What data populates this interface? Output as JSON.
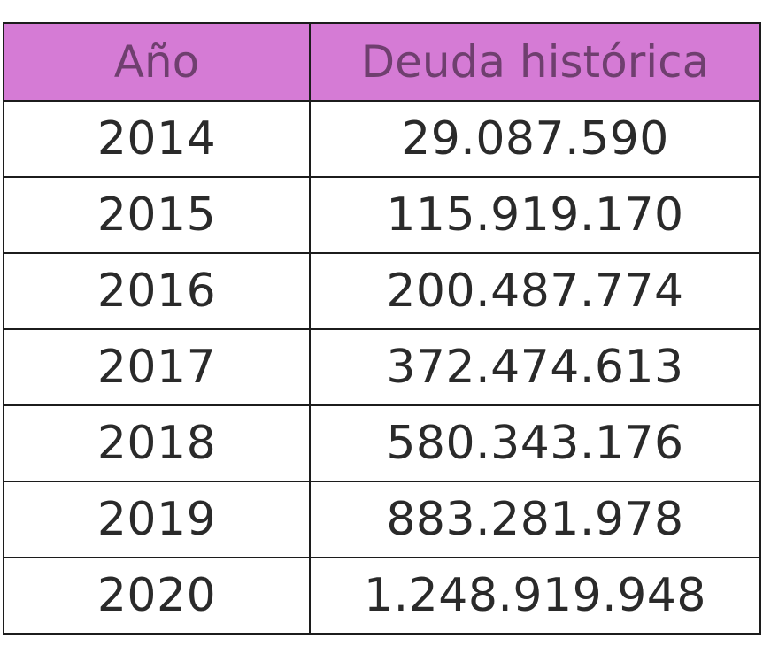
{
  "table": {
    "header_color": "#d57bd5",
    "columns": [
      "Año",
      "Deuda histórica"
    ],
    "rows": [
      [
        "2014",
        "29.087.590"
      ],
      [
        "2015",
        "115.919.170"
      ],
      [
        "2016",
        "200.487.774"
      ],
      [
        "2017",
        "372.474.613"
      ],
      [
        "2018",
        "580.343.176"
      ],
      [
        "2019",
        "883.281.978"
      ],
      [
        "2020",
        "1.248.919.948"
      ]
    ]
  }
}
